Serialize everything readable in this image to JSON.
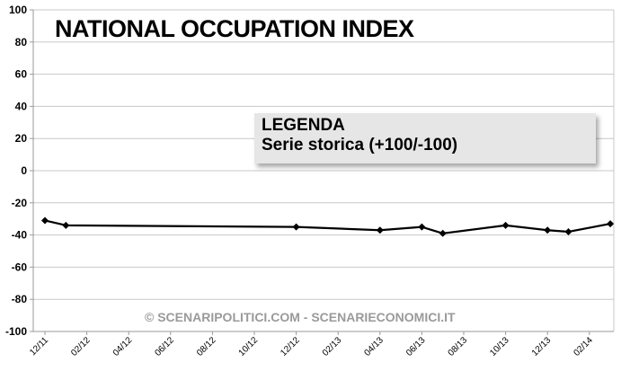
{
  "chart_data": {
    "type": "line",
    "title": "NATIONAL OCCUPATION INDEX",
    "legend": {
      "title": "LEGENDA",
      "entries": [
        "Serie storica (+100/-100)"
      ],
      "placement": "center-right"
    },
    "ylim": [
      -100,
      100
    ],
    "yticks": [
      100,
      80,
      60,
      40,
      20,
      0,
      -20,
      -40,
      -60,
      -80,
      -100
    ],
    "xticks": [
      "12/11",
      "02/12",
      "04/12",
      "06/12",
      "08/12",
      "10/12",
      "12/12",
      "02/13",
      "04/13",
      "06/13",
      "08/13",
      "10/13",
      "12/13",
      "02/14"
    ],
    "grid": true,
    "series": [
      {
        "color": "#000000",
        "points": [
          {
            "x": "12/11",
            "y": -31
          },
          {
            "x": "01/12",
            "y": -34
          },
          {
            "x": "12/12",
            "y": -35
          },
          {
            "x": "04/13",
            "y": -37
          },
          {
            "x": "06/13",
            "y": -35
          },
          {
            "x": "07/13",
            "y": -39
          },
          {
            "x": "10/13",
            "y": -34
          },
          {
            "x": "12/13",
            "y": -37
          },
          {
            "x": "01/14",
            "y": -38
          },
          {
            "x": "03/14",
            "y": -33
          }
        ]
      }
    ]
  },
  "watermark": "© SCENARIPOLITICI.COM - SCENARIECONOMICI.IT"
}
